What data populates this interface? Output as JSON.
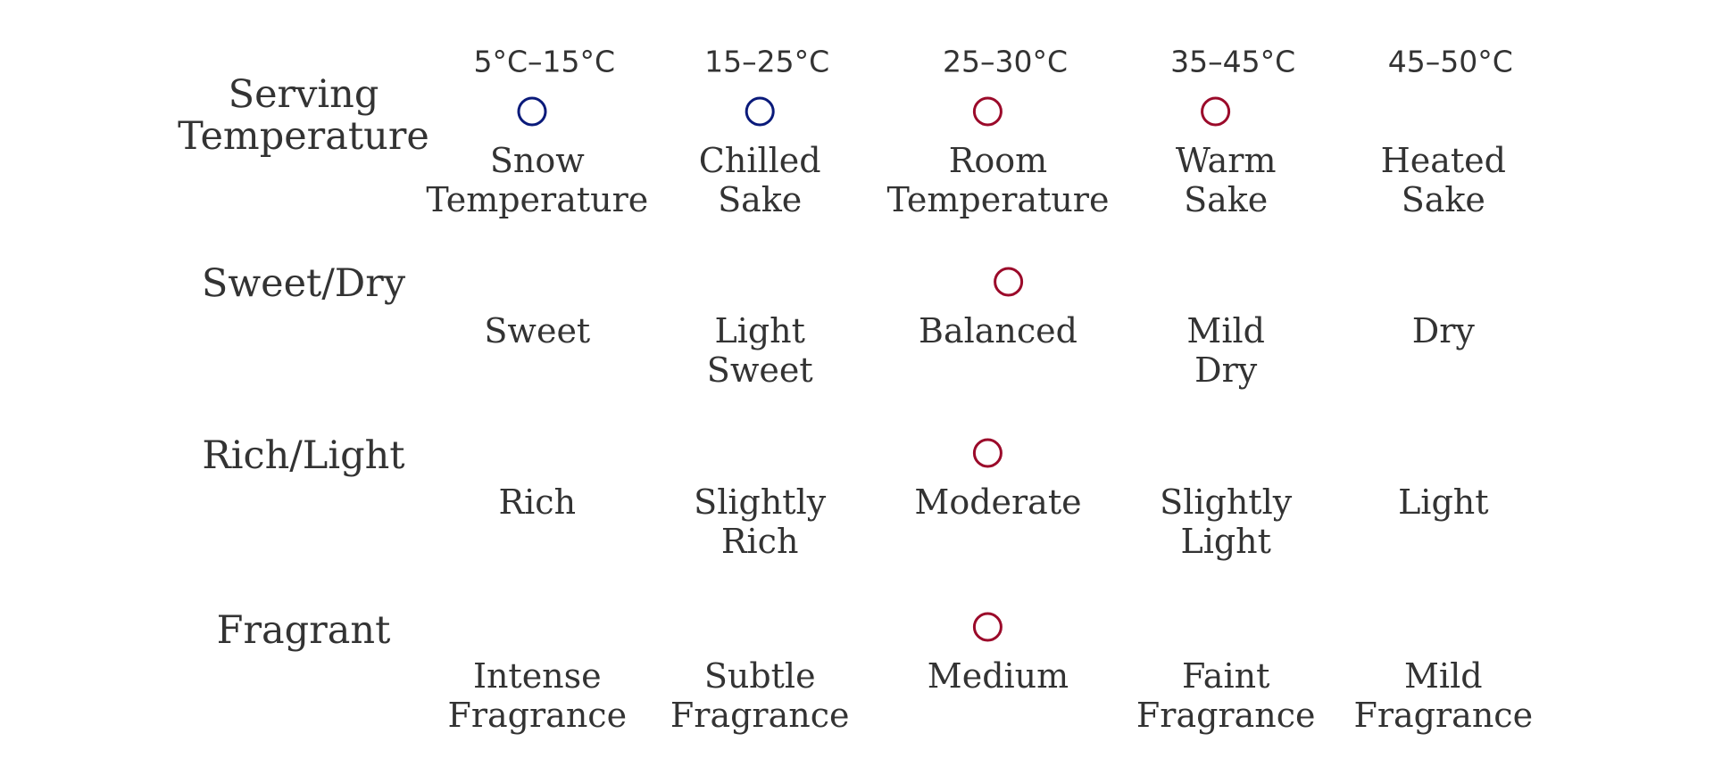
{
  "colors": {
    "scale_start": "#127ba3",
    "scale_end": "#c80000",
    "marker_cool": "#0a1a7a",
    "marker_warm": "#9b0a2a"
  },
  "rows": [
    {
      "title": [
        "Serving",
        "Temperature"
      ],
      "temps": [
        "5°C–15°C",
        "15–25°C",
        "25–30°C",
        "35–45°C",
        "45–50°C"
      ],
      "labels": [
        [
          "Snow",
          "Temperature"
        ],
        [
          "Chilled",
          "Sake"
        ],
        [
          "Room",
          "Temperature"
        ],
        [
          "Warm",
          "Sake"
        ],
        [
          "Heated",
          "Sake"
        ]
      ],
      "markers": [
        {
          "position": 0.05,
          "tone": "cool"
        },
        {
          "position": 0.27,
          "tone": "cool"
        },
        {
          "position": 0.49,
          "tone": "warm"
        },
        {
          "position": 0.71,
          "tone": "warm"
        }
      ]
    },
    {
      "title": [
        "Sweet/Dry"
      ],
      "labels": [
        [
          "Sweet"
        ],
        [
          "Light",
          "Sweet"
        ],
        [
          "Balanced"
        ],
        [
          "Mild",
          "Dry"
        ],
        [
          "Dry"
        ]
      ],
      "markers": [
        {
          "position": 0.51,
          "tone": "warm"
        }
      ]
    },
    {
      "title": [
        "Rich/Light"
      ],
      "labels": [
        [
          "Rich"
        ],
        [
          "Slightly",
          "Rich"
        ],
        [
          "Moderate"
        ],
        [
          "Slightly",
          "Light"
        ],
        [
          "Light"
        ]
      ],
      "markers": [
        {
          "position": 0.49,
          "tone": "warm"
        }
      ]
    },
    {
      "title": [
        "Fragrant"
      ],
      "labels": [
        [
          "Intense",
          "Fragrance"
        ],
        [
          "Subtle",
          "Fragrance"
        ],
        [
          "Medium"
        ],
        [
          "Faint",
          "Fragrance"
        ],
        [
          "Mild",
          "Fragrance"
        ]
      ],
      "markers": [
        {
          "position": 0.49,
          "tone": "warm"
        }
      ]
    }
  ]
}
